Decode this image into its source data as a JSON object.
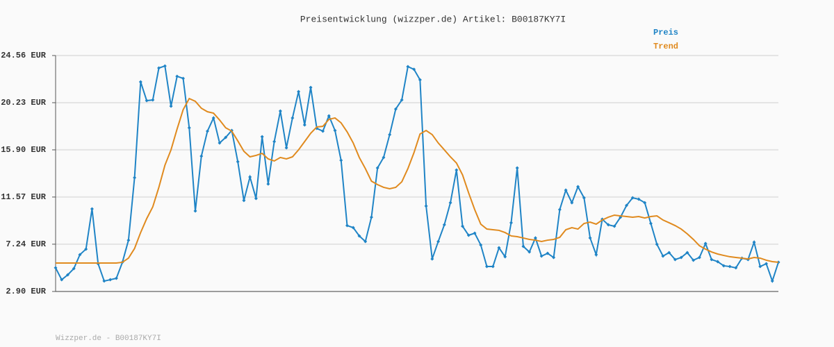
{
  "chart_data": {
    "type": "line",
    "title": "Preisentwicklung (wizzper.de) Artikel: B00187KY7I",
    "footer": "Wizzper.de - B00187KY7I",
    "ylim": [
      2.9,
      24.56
    ],
    "yticks": [
      {
        "value": 2.9,
        "label": "2.90 EUR"
      },
      {
        "value": 7.24,
        "label": "7.24 EUR"
      },
      {
        "value": 11.57,
        "label": "11.57 EUR"
      },
      {
        "value": 15.9,
        "label": "15.90 EUR"
      },
      {
        "value": 20.23,
        "label": "20.23 EUR"
      },
      {
        "value": 24.56,
        "label": "24.56 EUR"
      }
    ],
    "grid": true,
    "legend": "top-right",
    "series": [
      {
        "name": "Preis",
        "color": "#1f84c6",
        "markers": true,
        "values": [
          5.07,
          3.98,
          4.43,
          5.0,
          6.28,
          6.79,
          10.48,
          5.45,
          3.86,
          3.98,
          4.11,
          5.58,
          7.61,
          13.35,
          22.14,
          20.42,
          20.48,
          23.41,
          23.6,
          19.91,
          22.65,
          22.46,
          17.93,
          10.29,
          15.32,
          17.62,
          18.83,
          16.53,
          17.04,
          17.68,
          14.81,
          11.25,
          13.41,
          11.44,
          17.11,
          12.77,
          16.66,
          19.46,
          16.09,
          18.83,
          21.25,
          18.19,
          21.63,
          17.87,
          17.62,
          19.02,
          17.68,
          14.94,
          8.95,
          8.76,
          8.0,
          7.49,
          9.72,
          14.24,
          15.2,
          17.3,
          19.65,
          20.48,
          23.54,
          23.29,
          22.33,
          10.74,
          5.89,
          7.49,
          9.02,
          11.05,
          14.05,
          8.89,
          8.06,
          8.25,
          7.17,
          5.19,
          5.19,
          6.91,
          6.09,
          9.21,
          14.24,
          7.04,
          6.53,
          7.81,
          6.15,
          6.4,
          6.02,
          10.42,
          12.2,
          11.05,
          12.52,
          11.5,
          7.81,
          6.28,
          9.53,
          9.02,
          8.89,
          9.72,
          10.8,
          11.5,
          11.37,
          11.05,
          9.14,
          7.23,
          6.15,
          6.47,
          5.83,
          6.02,
          6.47,
          5.77,
          6.02,
          7.3,
          5.83,
          5.64,
          5.26,
          5.19,
          5.07,
          5.96,
          5.83,
          7.42,
          5.19,
          5.45,
          3.86,
          5.58
        ]
      },
      {
        "name": "Trend",
        "color": "#e08a1e",
        "markers": false,
        "values": [
          5.51,
          5.51,
          5.51,
          5.51,
          5.51,
          5.51,
          5.51,
          5.51,
          5.51,
          5.51,
          5.51,
          5.58,
          5.96,
          6.85,
          8.31,
          9.59,
          10.67,
          12.46,
          14.49,
          15.9,
          17.81,
          19.59,
          20.61,
          20.36,
          19.72,
          19.4,
          19.27,
          18.64,
          17.93,
          17.62,
          16.72,
          15.77,
          15.26,
          15.39,
          15.58,
          15.07,
          14.88,
          15.2,
          15.07,
          15.26,
          15.9,
          16.66,
          17.42,
          18.0,
          18.06,
          18.7,
          18.83,
          18.38,
          17.55,
          16.53,
          15.2,
          14.18,
          13.03,
          12.71,
          12.46,
          12.33,
          12.46,
          12.97,
          14.18,
          15.64,
          17.36,
          17.68,
          17.3,
          16.53,
          15.9,
          15.26,
          14.69,
          13.6,
          11.95,
          10.42,
          9.08,
          8.63,
          8.57,
          8.51,
          8.31,
          8.0,
          7.93,
          7.81,
          7.68,
          7.61,
          7.49,
          7.61,
          7.68,
          7.87,
          8.57,
          8.76,
          8.63,
          9.14,
          9.27,
          9.08,
          9.46,
          9.72,
          9.91,
          9.84,
          9.78,
          9.72,
          9.78,
          9.65,
          9.78,
          9.84,
          9.46,
          9.21,
          8.95,
          8.63,
          8.19,
          7.68,
          7.1,
          6.79,
          6.53,
          6.34,
          6.21,
          6.09,
          6.02,
          5.96,
          5.89,
          6.02,
          5.96,
          5.77,
          5.64,
          5.58
        ]
      }
    ]
  }
}
